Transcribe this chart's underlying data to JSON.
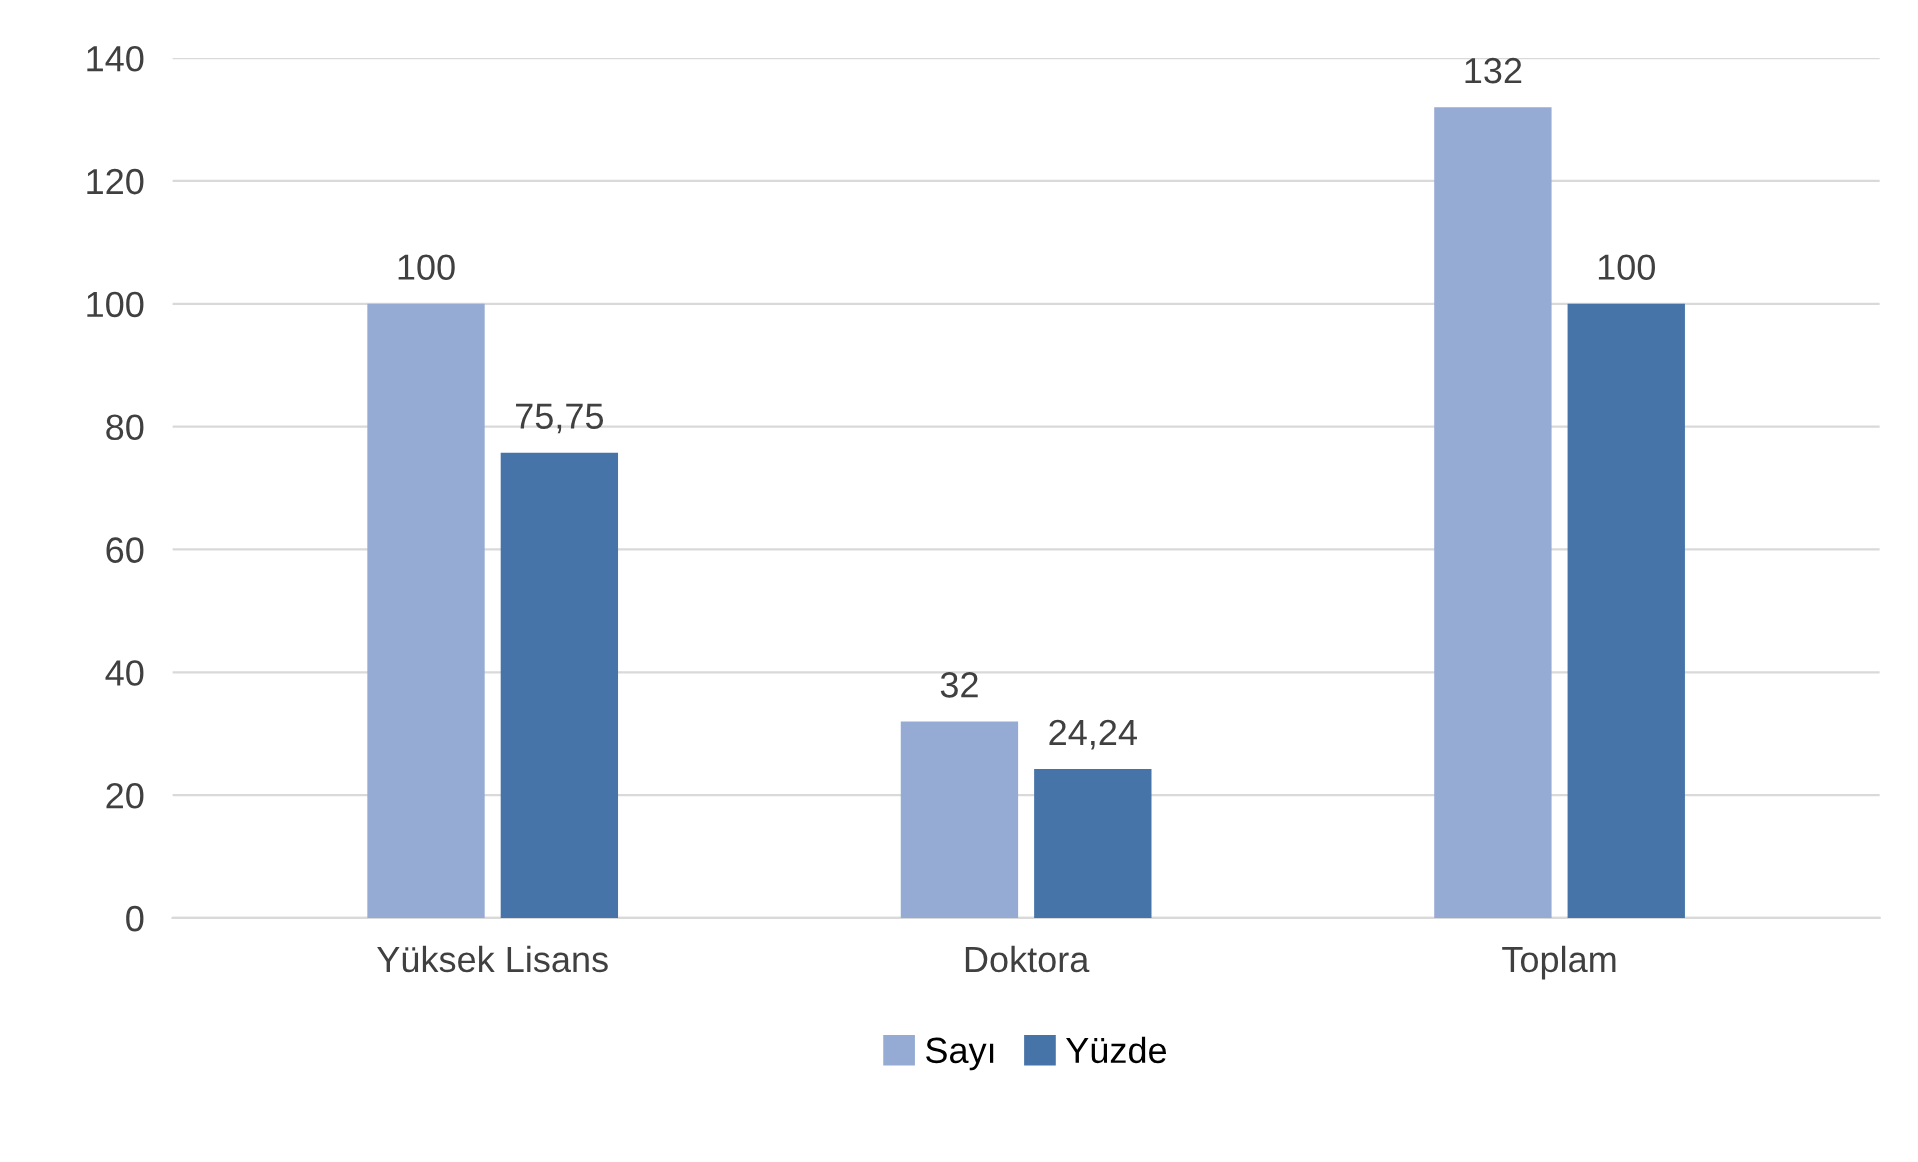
{
  "chart_data": {
    "type": "bar",
    "categories": [
      "Yüksek Lisans",
      "Doktora",
      "Toplam"
    ],
    "series": [
      {
        "name": "Sayı",
        "color": "#95abd3",
        "values": [
          100,
          32,
          132
        ],
        "value_labels": [
          "100",
          "32",
          "132"
        ]
      },
      {
        "name": "Yüzde",
        "color": "#4673a8",
        "values": [
          75.75,
          24.24,
          100
        ],
        "value_labels": [
          "75,75",
          "24,24",
          "100"
        ]
      }
    ],
    "ylim": [
      0,
      140
    ],
    "yticks": [
      0,
      20,
      40,
      60,
      80,
      100,
      120,
      140
    ],
    "grid": "y",
    "legend": "bottom"
  }
}
